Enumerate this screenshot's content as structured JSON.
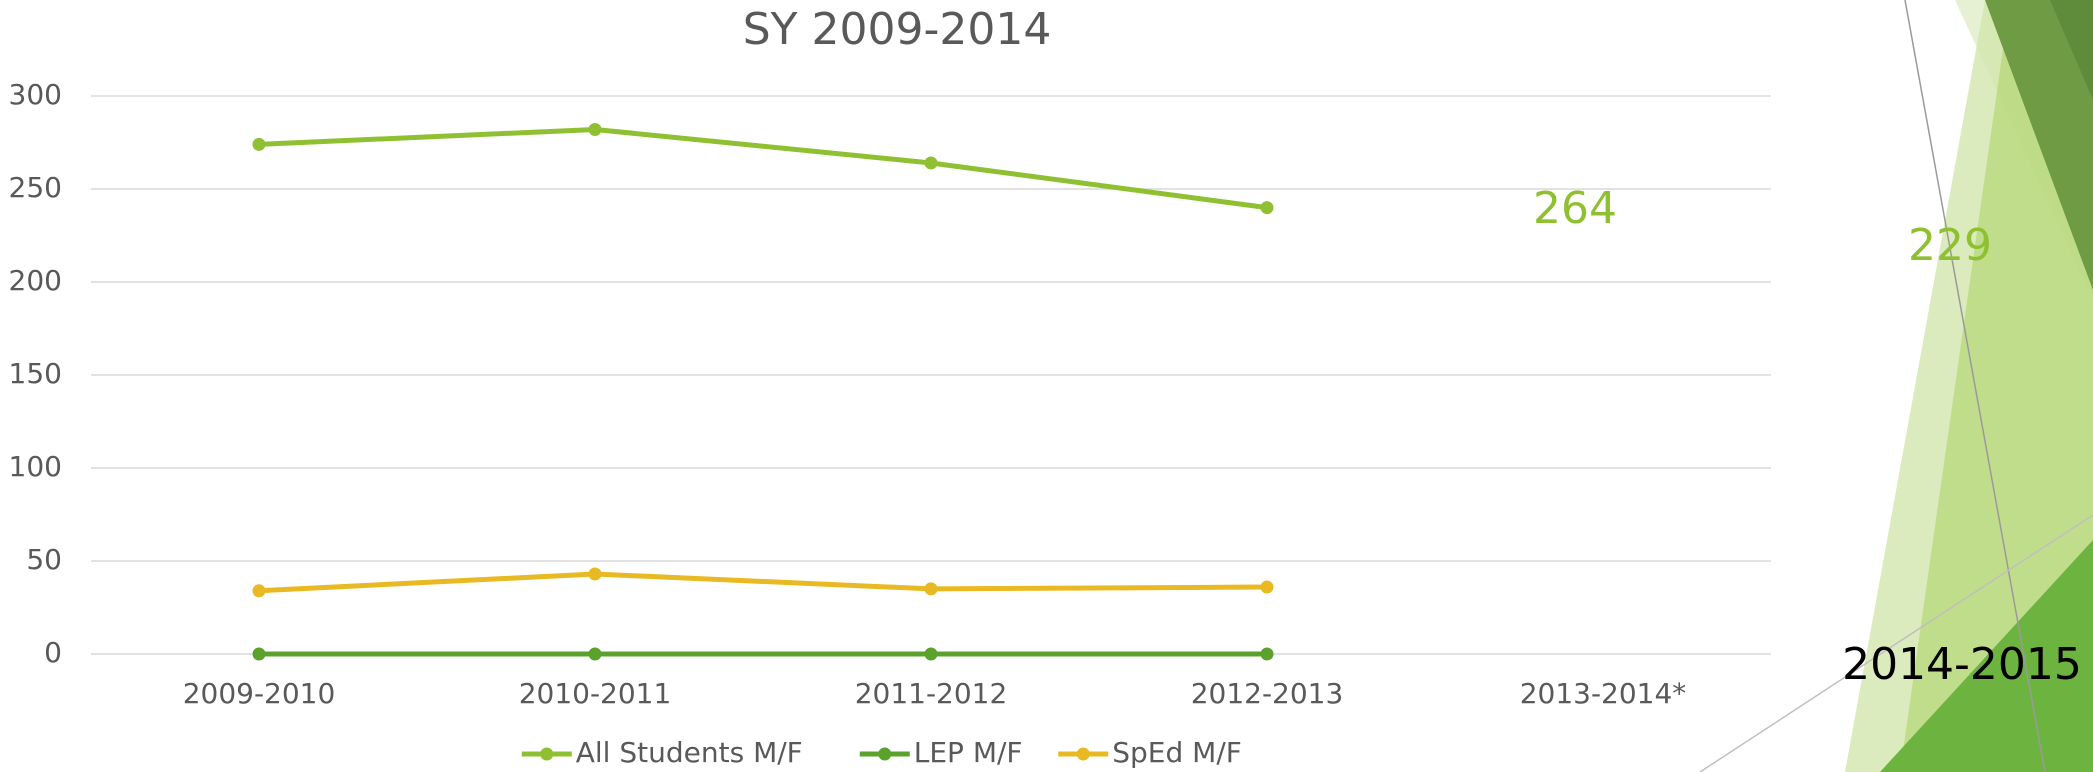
{
  "chart_data": {
    "type": "line",
    "title": "SY 2009-2014",
    "categories": [
      "2009-2010",
      "2010-2011",
      "2011-2012",
      "2012-2013",
      "2013-2014*"
    ],
    "series": [
      {
        "name": "All Students M/F",
        "color": "#8fc031",
        "values": [
          274,
          282,
          264,
          240,
          null
        ]
      },
      {
        "name": "LEP M/F",
        "color": "#5aa22c",
        "values": [
          0,
          0,
          0,
          0,
          null
        ]
      },
      {
        "name": "SpEd M/F",
        "color": "#e9b923",
        "values": [
          34,
          43,
          35,
          36,
          null
        ]
      }
    ],
    "ylim": [
      0,
      300
    ],
    "yticks": [
      0,
      50,
      100,
      150,
      200,
      250,
      300
    ],
    "grid": true,
    "legend": "bottom",
    "annotations": [
      {
        "text": "264",
        "color": "#8fc031"
      },
      {
        "text": "229",
        "color": "#8fc031"
      },
      {
        "text": "2014-2015",
        "color": "#000000"
      }
    ]
  }
}
